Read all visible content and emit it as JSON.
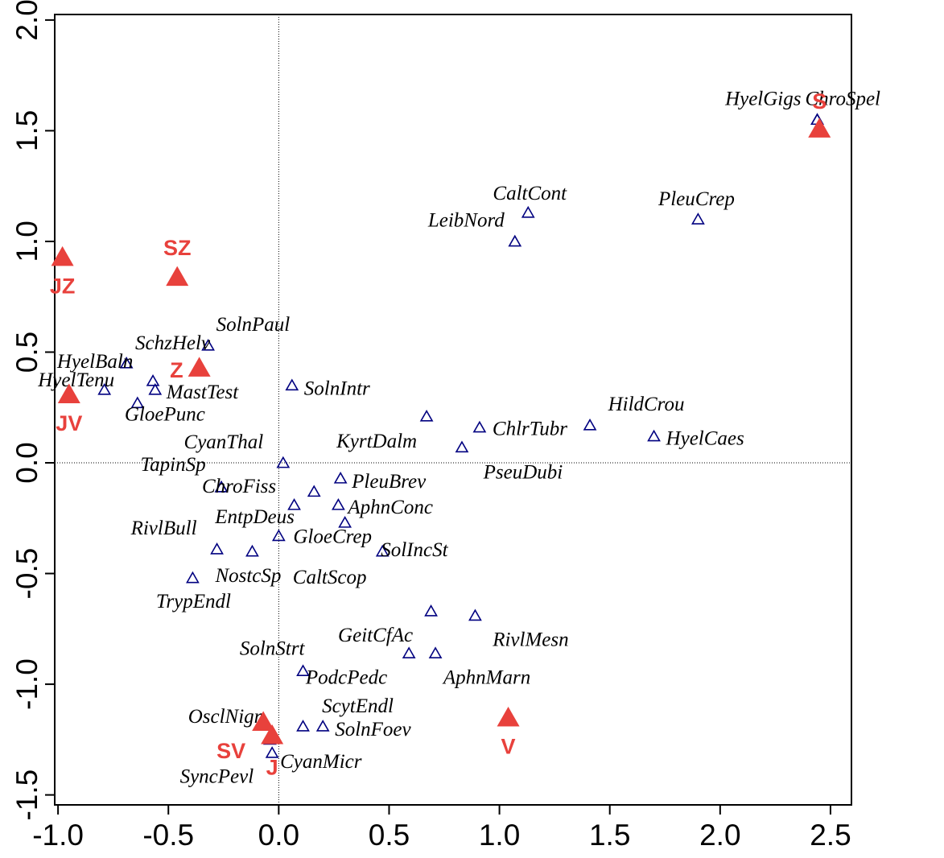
{
  "chart_data": {
    "type": "scatter",
    "xlim": [
      -1.015,
      2.595
    ],
    "ylim": [
      -1.545,
      2.025
    ],
    "xticks": [
      {
        "value": -1.0,
        "label": "-1.0"
      },
      -0.5,
      {
        "value": 0.0,
        "label": "0.0"
      },
      0.5,
      {
        "value": 1.0,
        "label": "1.0"
      },
      1.5,
      {
        "value": 2.0,
        "label": "2.0"
      },
      2.5
    ],
    "yticks": [
      {
        "value": -1.5,
        "label": "-1.5"
      },
      {
        "value": -1.0,
        "label": "-1.0"
      },
      -0.5,
      {
        "value": 0.0,
        "label": "0.0"
      },
      0.5,
      {
        "value": 1.0,
        "label": "1.0"
      },
      1.5,
      {
        "value": 2.0,
        "label": "2.0"
      }
    ],
    "species": {
      "color": "#000080",
      "labels": [
        "HyelGigs",
        "ChroSpel",
        "CaltCont",
        "LeibNord",
        "PleuCrep",
        "SolnPaul",
        "SchzHelv",
        "HyelBaln",
        "HyelTenu",
        "MastTest",
        "GloePunc",
        "SolnIntr",
        "KyrtDalm",
        "ChlrTubr",
        "HildCrou",
        "HyelCaes",
        "PseuDubi",
        "CyanThal",
        "TapinSp",
        "ChroFiss",
        "PleuBrev",
        null,
        "EntpDeus",
        "AphnConc",
        "CaltScop",
        "GloeCrep",
        "SolIncSt",
        "RivlBull",
        "NostcSp",
        "TrypEndl",
        "GeitCfAc",
        "RivlMesn",
        "SolnStrt",
        "AphnMarn",
        "PodcPedc",
        "ScytEndl",
        "SolnFoev",
        "OsclNigr",
        "CyanMicr",
        "SyncPevl"
      ],
      "x": [
        2.44,
        2.44,
        1.13,
        1.07,
        1.9,
        -0.32,
        -0.57,
        -0.69,
        -0.79,
        -0.56,
        -0.64,
        0.06,
        0.67,
        0.91,
        1.41,
        1.7,
        0.83,
        0.02,
        -0.26,
        -0.26,
        0.28,
        0.16,
        0.07,
        0.27,
        0.3,
        0.0,
        0.47,
        -0.28,
        -0.12,
        -0.39,
        0.69,
        0.89,
        0.59,
        0.71,
        0.11,
        0.11,
        0.2,
        -0.04,
        -0.03,
        -0.04
      ],
      "y": [
        1.55,
        1.55,
        1.13,
        1.0,
        1.1,
        0.53,
        0.37,
        0.45,
        0.33,
        0.33,
        0.27,
        0.35,
        0.21,
        0.16,
        0.17,
        0.12,
        0.07,
        0.0,
        -0.11,
        -0.11,
        -0.07,
        -0.13,
        -0.19,
        -0.19,
        -0.27,
        -0.33,
        -0.4,
        -0.39,
        -0.4,
        -0.52,
        -0.67,
        -0.69,
        -0.86,
        -0.86,
        -0.94,
        -1.19,
        -1.19,
        -1.24,
        -1.31,
        -1.25
      ]
    },
    "sites": {
      "color": "#e8413c",
      "labels": [
        "S",
        "JZ",
        "SZ",
        "Z",
        "JV",
        "V",
        "SV",
        "J"
      ],
      "x": [
        2.45,
        -0.98,
        -0.46,
        -0.36,
        -0.95,
        1.04,
        -0.07,
        -0.03
      ],
      "y": [
        1.51,
        0.93,
        0.84,
        0.43,
        0.31,
        -1.15,
        -1.17,
        -1.23
      ]
    }
  }
}
